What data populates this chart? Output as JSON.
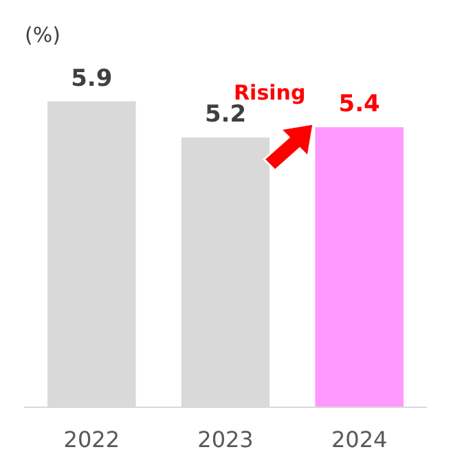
{
  "chart_data": {
    "type": "bar",
    "ylabel": "(%)",
    "categories": [
      "2022",
      "2023",
      "2024"
    ],
    "values": [
      5.9,
      5.2,
      5.4
    ],
    "colors": [
      "#d9d9d9",
      "#d9d9d9",
      "#ff99ff"
    ],
    "tick_labels": "x",
    "data_labels": true,
    "annotations": [
      "Rising"
    ]
  }
}
